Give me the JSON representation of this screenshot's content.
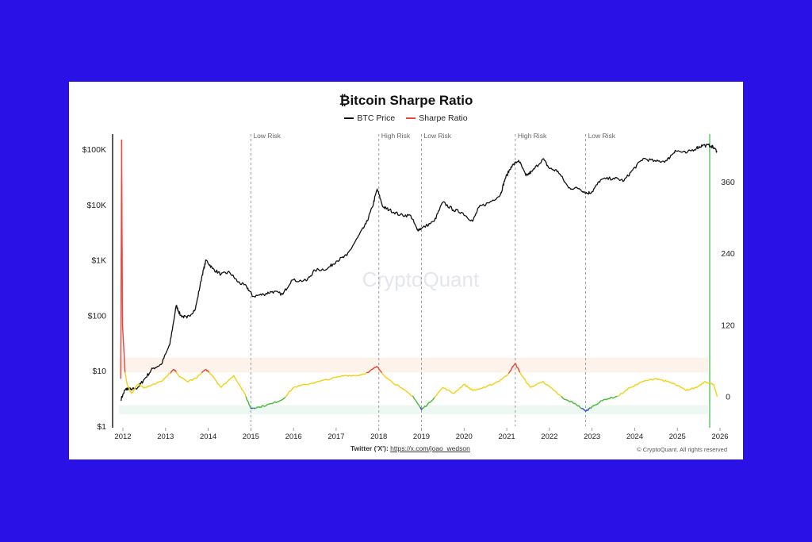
{
  "header": {
    "title": "₿itcoin Sharpe Ratio"
  },
  "legend": {
    "items": [
      {
        "label": "BTC Price",
        "color": "#111111"
      },
      {
        "label": "Sharpe Ratio",
        "color": "#e8473d"
      }
    ]
  },
  "watermark": "CryptoQuant",
  "footer": {
    "twitter_label": "Twitter ('X'):",
    "twitter_url": "https://x.com/joao_wedson",
    "copyright": "© CryptoQuant. All rights reserved"
  },
  "colors": {
    "background": "#2a12e6",
    "card": "#ffffff",
    "price_line": "#111111",
    "sharpe_red": "#e8473d",
    "sharpe_yellow": "#f2d21b",
    "sharpe_green": "#4cbb3c",
    "sharpe_blue": "#3d45d8",
    "right_axis": "#5cc45c"
  },
  "chart_data": {
    "type": "line",
    "title": "₿itcoin Sharpe Ratio",
    "x_ticks": [
      "2012",
      "2013",
      "2014",
      "2015",
      "2016",
      "2017",
      "2018",
      "2019",
      "2020",
      "2021",
      "2022",
      "2023",
      "2024",
      "2025",
      "2026"
    ],
    "y_left_ticks": [
      "$1",
      "$10",
      "$100",
      "$1K",
      "$10K",
      "$100K"
    ],
    "y_right_ticks": [
      "0",
      "120",
      "240",
      "360"
    ],
    "y_left_scale": "log",
    "y_left_range": [
      1,
      100000
    ],
    "y_right_range": [
      -50,
      440
    ],
    "annotations": [
      {
        "label": "Low Risk",
        "x": 2015.0
      },
      {
        "label": "High Risk",
        "x": 2018.0
      },
      {
        "label": "Low Risk",
        "x": 2019.0
      },
      {
        "label": "High Risk",
        "x": 2021.2
      },
      {
        "label": "Low Risk",
        "x": 2022.85
      }
    ],
    "series": [
      {
        "name": "BTC Price",
        "points": [
          [
            2011.95,
            3
          ],
          [
            2012.05,
            4.5
          ],
          [
            2012.12,
            4.8
          ],
          [
            2012.2,
            4.5
          ],
          [
            2012.35,
            5
          ],
          [
            2012.5,
            7
          ],
          [
            2012.7,
            11
          ],
          [
            2012.9,
            13
          ],
          [
            2013.1,
            30
          ],
          [
            2013.25,
            150
          ],
          [
            2013.35,
            100
          ],
          [
            2013.5,
            90
          ],
          [
            2013.7,
            130
          ],
          [
            2013.85,
            500
          ],
          [
            2013.95,
            1000
          ],
          [
            2014.1,
            700
          ],
          [
            2014.3,
            550
          ],
          [
            2014.5,
            600
          ],
          [
            2014.7,
            400
          ],
          [
            2014.9,
            330
          ],
          [
            2015.05,
            220
          ],
          [
            2015.3,
            240
          ],
          [
            2015.5,
            270
          ],
          [
            2015.75,
            240
          ],
          [
            2015.95,
            430
          ],
          [
            2016.3,
            420
          ],
          [
            2016.5,
            650
          ],
          [
            2016.8,
            700
          ],
          [
            2017.0,
            950
          ],
          [
            2017.25,
            1200
          ],
          [
            2017.5,
            2500
          ],
          [
            2017.7,
            4500
          ],
          [
            2017.85,
            9000
          ],
          [
            2017.96,
            19000
          ],
          [
            2018.1,
            9000
          ],
          [
            2018.25,
            8000
          ],
          [
            2018.5,
            6500
          ],
          [
            2018.75,
            6300
          ],
          [
            2018.9,
            3500
          ],
          [
            2019.0,
            3700
          ],
          [
            2019.3,
            5000
          ],
          [
            2019.5,
            11000
          ],
          [
            2019.75,
            8000
          ],
          [
            2019.95,
            7200
          ],
          [
            2020.2,
            5000
          ],
          [
            2020.35,
            9000
          ],
          [
            2020.6,
            11000
          ],
          [
            2020.85,
            15000
          ],
          [
            2020.96,
            29000
          ],
          [
            2021.1,
            48000
          ],
          [
            2021.28,
            63000
          ],
          [
            2021.45,
            33000
          ],
          [
            2021.6,
            40000
          ],
          [
            2021.85,
            67000
          ],
          [
            2022.0,
            45000
          ],
          [
            2022.2,
            40000
          ],
          [
            2022.45,
            20000
          ],
          [
            2022.7,
            19500
          ],
          [
            2022.88,
            16000
          ],
          [
            2023.0,
            17000
          ],
          [
            2023.2,
            28000
          ],
          [
            2023.5,
            30000
          ],
          [
            2023.75,
            27000
          ],
          [
            2023.95,
            42000
          ],
          [
            2024.2,
            68000
          ],
          [
            2024.5,
            60000
          ],
          [
            2024.75,
            62000
          ],
          [
            2024.95,
            95000
          ],
          [
            2025.2,
            85000
          ],
          [
            2025.45,
            105000
          ],
          [
            2025.6,
            118000
          ],
          [
            2025.8,
            115000
          ],
          [
            2025.93,
            92000
          ]
        ]
      },
      {
        "name": "Sharpe Ratio",
        "points": [
          [
            2011.95,
            30
          ],
          [
            2011.97,
            430
          ],
          [
            2011.99,
            120
          ],
          [
            2012.02,
            80
          ],
          [
            2012.05,
            40
          ],
          [
            2012.1,
            20
          ],
          [
            2012.2,
            5
          ],
          [
            2012.35,
            20
          ],
          [
            2012.5,
            15
          ],
          [
            2012.7,
            20
          ],
          [
            2012.9,
            25
          ],
          [
            2013.05,
            35
          ],
          [
            2013.2,
            45
          ],
          [
            2013.3,
            35
          ],
          [
            2013.5,
            25
          ],
          [
            2013.7,
            30
          ],
          [
            2013.95,
            45
          ],
          [
            2014.1,
            35
          ],
          [
            2014.3,
            15
          ],
          [
            2014.6,
            35
          ],
          [
            2014.85,
            5
          ],
          [
            2015.0,
            -20
          ],
          [
            2015.2,
            -18
          ],
          [
            2015.5,
            -12
          ],
          [
            2015.75,
            -5
          ],
          [
            2016.0,
            15
          ],
          [
            2016.3,
            20
          ],
          [
            2016.6,
            25
          ],
          [
            2016.9,
            30
          ],
          [
            2017.2,
            35
          ],
          [
            2017.5,
            35
          ],
          [
            2017.75,
            40
          ],
          [
            2017.95,
            50
          ],
          [
            2018.2,
            30
          ],
          [
            2018.5,
            15
          ],
          [
            2018.8,
            0
          ],
          [
            2019.0,
            -22
          ],
          [
            2019.2,
            -10
          ],
          [
            2019.5,
            15
          ],
          [
            2019.75,
            5
          ],
          [
            2020.0,
            20
          ],
          [
            2020.2,
            10
          ],
          [
            2020.5,
            15
          ],
          [
            2020.8,
            25
          ],
          [
            2021.0,
            35
          ],
          [
            2021.2,
            55
          ],
          [
            2021.35,
            35
          ],
          [
            2021.55,
            15
          ],
          [
            2021.85,
            25
          ],
          [
            2022.1,
            10
          ],
          [
            2022.35,
            -5
          ],
          [
            2022.6,
            -12
          ],
          [
            2022.85,
            -25
          ],
          [
            2023.05,
            -15
          ],
          [
            2023.3,
            -5
          ],
          [
            2023.6,
            0
          ],
          [
            2023.9,
            15
          ],
          [
            2024.2,
            25
          ],
          [
            2024.5,
            30
          ],
          [
            2024.75,
            25
          ],
          [
            2024.95,
            20
          ],
          [
            2025.2,
            10
          ],
          [
            2025.45,
            15
          ],
          [
            2025.65,
            25
          ],
          [
            2025.85,
            20
          ],
          [
            2025.93,
            0
          ]
        ]
      }
    ],
    "sharpe_color_bands": [
      {
        "min": 40,
        "color": "#e8473d"
      },
      {
        "min": 0,
        "color": "#f2d21b"
      },
      {
        "min": -20,
        "color": "#4cbb3c"
      },
      {
        "min": -999,
        "color": "#3d45d8"
      }
    ]
  }
}
